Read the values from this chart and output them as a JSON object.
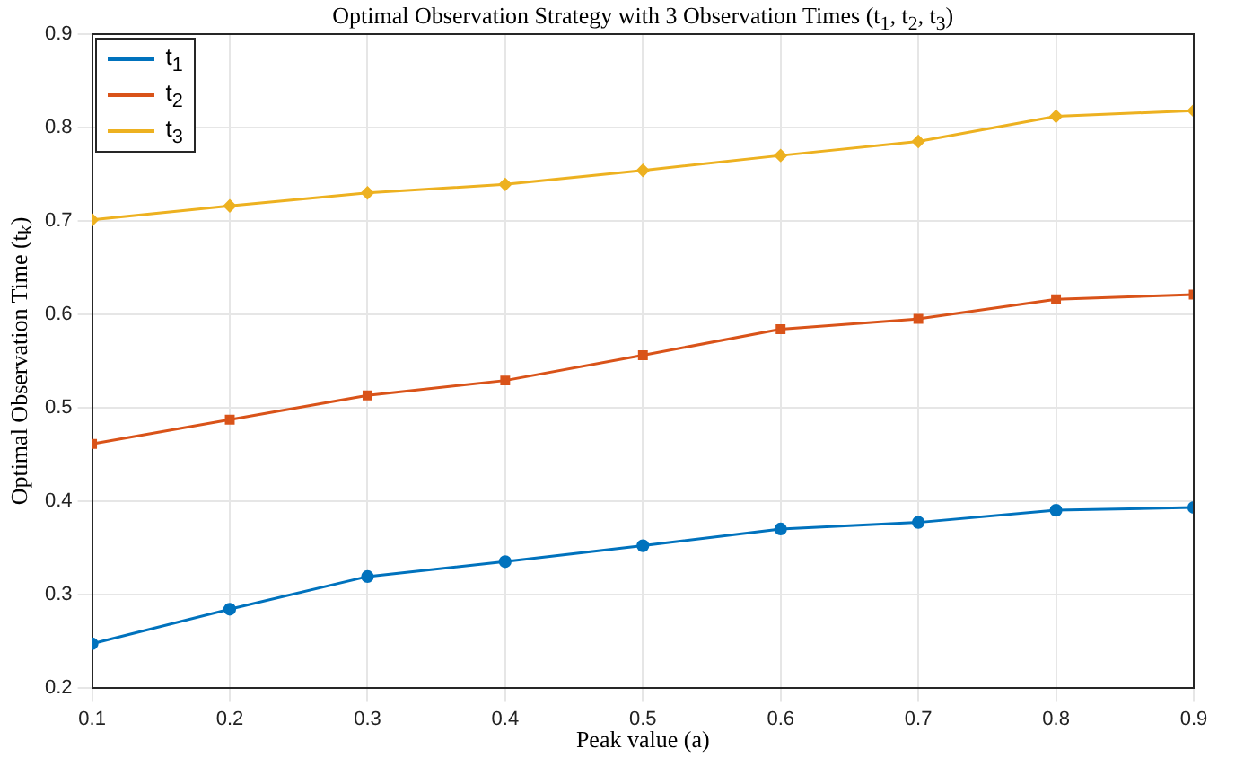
{
  "chart_data": {
    "type": "line",
    "title": "Optimal Observation Strategy with 3 Observation Times (t$_{1}$, t$_{2}$, t$_{3}$)",
    "xlabel": "Peak value (a)",
    "ylabel": "Optimal Observation Time (t$_{k}$)",
    "x": [
      0.1,
      0.2,
      0.3,
      0.4,
      0.5,
      0.6,
      0.7,
      0.8,
      0.9
    ],
    "series": [
      {
        "name": "t$_{1}$",
        "color": "#0072bd",
        "marker": "circle",
        "values": [
          0.247,
          0.284,
          0.319,
          0.335,
          0.352,
          0.37,
          0.377,
          0.39,
          0.393
        ]
      },
      {
        "name": "t$_{2}$",
        "color": "#d95319",
        "marker": "square",
        "values": [
          0.461,
          0.487,
          0.513,
          0.529,
          0.556,
          0.584,
          0.595,
          0.616,
          0.621
        ]
      },
      {
        "name": "t$_{3}$",
        "color": "#edb120",
        "marker": "diamond",
        "values": [
          0.701,
          0.716,
          0.73,
          0.739,
          0.754,
          0.77,
          0.785,
          0.812,
          0.818
        ]
      }
    ],
    "xlim": [
      0.1,
      0.9
    ],
    "xticks": [
      0.1,
      0.2,
      0.3,
      0.4,
      0.5,
      0.6,
      0.7,
      0.8,
      0.9
    ],
    "ylim": [
      0.2,
      0.9
    ],
    "yticks": [
      0.2,
      0.3,
      0.4,
      0.5,
      0.6,
      0.7,
      0.8,
      0.9
    ],
    "grid": true,
    "legend": "top left",
    "line_style": "solid"
  }
}
